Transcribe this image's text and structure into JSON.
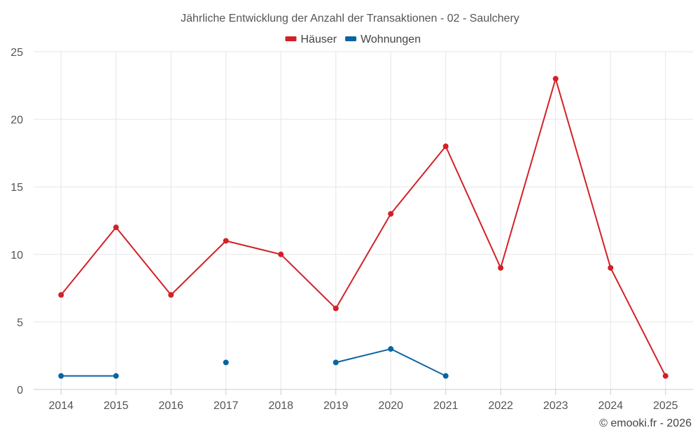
{
  "chart_data": {
    "type": "line",
    "title": "Jährliche Entwicklung der Anzahl der Transaktionen - 02 - Saulchery",
    "xlabel": "",
    "ylabel": "",
    "categories": [
      "2014",
      "2015",
      "2016",
      "2017",
      "2018",
      "2019",
      "2020",
      "2021",
      "2022",
      "2023",
      "2024",
      "2025"
    ],
    "ylim": [
      0,
      25
    ],
    "yticks": [
      0,
      5,
      10,
      15,
      20,
      25
    ],
    "grid": true,
    "legend_position": "top-center",
    "series": [
      {
        "name": "Häuser",
        "color": "#d32027",
        "values": [
          7,
          12,
          7,
          11,
          10,
          6,
          13,
          18,
          9,
          23,
          9,
          1
        ]
      },
      {
        "name": "Wohnungen",
        "color": "#0a64a0",
        "values": [
          1,
          1,
          null,
          2,
          null,
          2,
          3,
          1,
          null,
          null,
          null,
          null
        ]
      }
    ]
  },
  "credit": "© emooki.fr - 2026"
}
